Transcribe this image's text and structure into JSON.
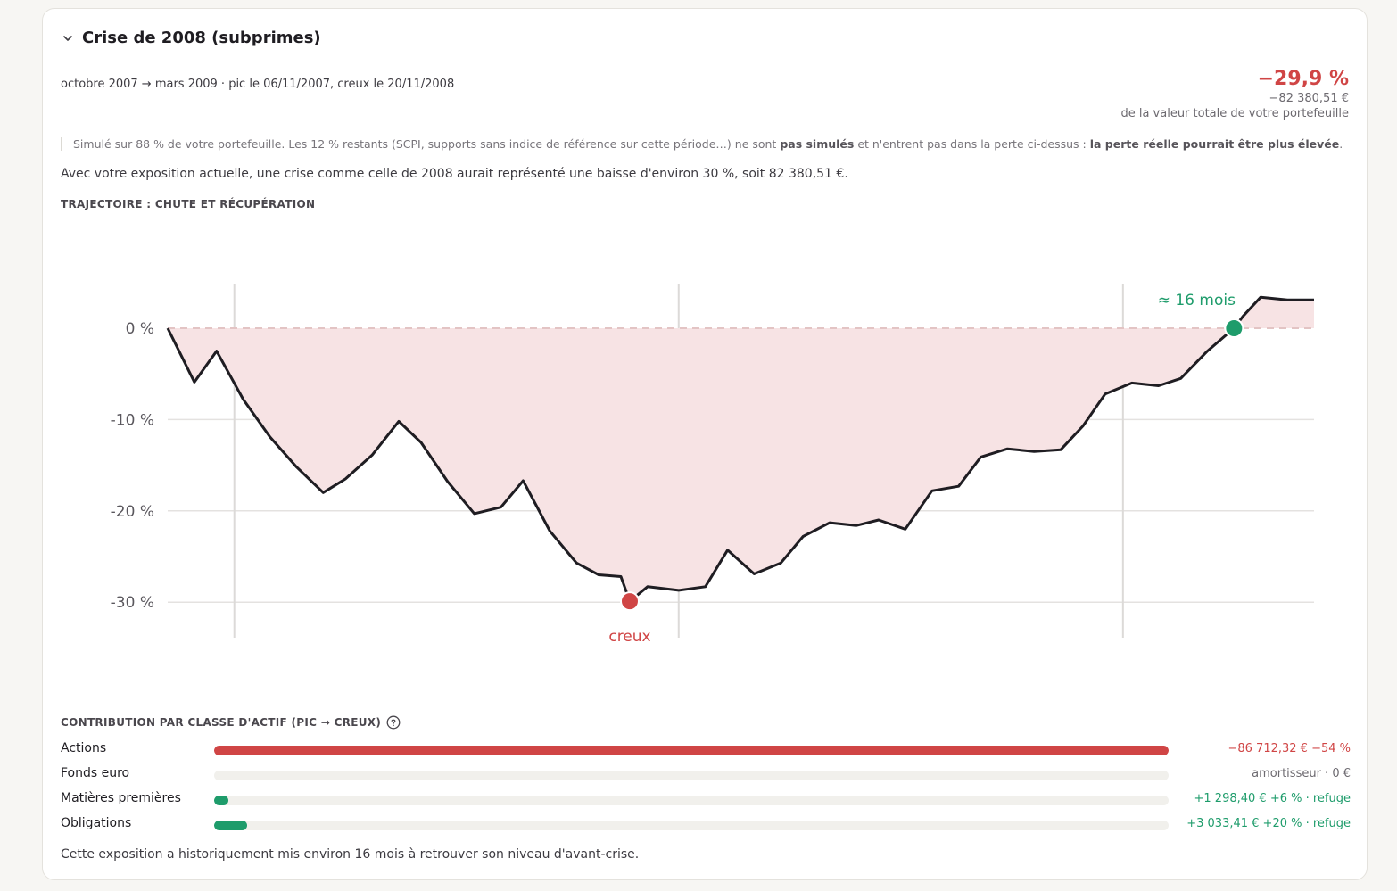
{
  "header": {
    "title": "Crise de 2008 (subprimes)",
    "period": "octobre 2007 → mars 2009 · pic le 06/11/2007, creux le 20/11/2008"
  },
  "summary": {
    "pct": "−29,9 %",
    "amount": "−82 380,51 €",
    "subtitle": "de la valeur totale de votre portefeuille"
  },
  "note": {
    "part1": "Simulé sur 88 % de votre portefeuille. Les 12 % restants (SCPI, supports sans indice de référence sur cette période…) ne sont ",
    "bold1": "pas simulés",
    "part2": " et n'entrent pas dans la perte ci-dessus : ",
    "bold2": "la perte réelle pourrait être plus élevée",
    "part3": "."
  },
  "exposure_text": "Avec votre exposition actuelle, une crise comme celle de 2008 aurait représenté une baisse d'environ 30 %, soit 82 380,51 €.",
  "trajectory_title": "TRAJECTOIRE : CHUTE ET RÉCUPÉRATION",
  "chart_data": {
    "type": "area",
    "title": "TRAJECTOIRE : CHUTE ET RÉCUPÉRATION",
    "xlabel": "",
    "ylabel": "",
    "x_ticks": [
      2008,
      2009,
      2010
    ],
    "x_range": [
      2007.85,
      2010.43
    ],
    "y_ticks": [
      0,
      -10,
      -20,
      -30
    ],
    "y_tick_labels": [
      "0 %",
      "-10 %",
      "-20 %",
      "-30 %"
    ],
    "ylim": [
      -34,
      5
    ],
    "grid": true,
    "series": [
      {
        "x": [
          2007.85,
          2007.91,
          2007.96,
          2008.02,
          2008.08,
          2008.14,
          2008.2,
          2008.25,
          2008.31,
          2008.37,
          2008.42,
          2008.48,
          2008.54,
          2008.6,
          2008.65,
          2008.71,
          2008.77,
          2008.82,
          2008.87,
          2008.89,
          2008.93,
          2009.0,
          2009.06,
          2009.11,
          2009.17,
          2009.23,
          2009.28,
          2009.34,
          2009.4,
          2009.45,
          2009.51,
          2009.57,
          2009.63,
          2009.68,
          2009.74,
          2009.8,
          2009.86,
          2009.91,
          2009.96,
          2010.02,
          2010.08,
          2010.13,
          2010.19,
          2010.25,
          2010.27,
          2010.31,
          2010.37,
          2010.43
        ],
        "values": [
          0,
          -5.9,
          -2.5,
          -7.8,
          -11.9,
          -15.2,
          -18.0,
          -16.5,
          -13.9,
          -10.2,
          -12.5,
          -16.8,
          -20.3,
          -19.6,
          -16.7,
          -22.2,
          -25.7,
          -27.0,
          -27.2,
          -29.9,
          -28.3,
          -28.7,
          -28.3,
          -24.3,
          -26.9,
          -25.7,
          -22.8,
          -21.3,
          -21.6,
          -21.0,
          -22.0,
          -17.8,
          -17.3,
          -14.1,
          -13.2,
          -13.5,
          -13.3,
          -10.7,
          -7.2,
          -6.0,
          -6.3,
          -5.5,
          -2.5,
          0,
          1.3,
          3.4,
          3.1,
          3.1
        ]
      }
    ],
    "annotations": [
      {
        "label": "creux",
        "x": 2008.89,
        "y": -29.9,
        "color": "#d04545"
      },
      {
        "label": "≈ 16 mois",
        "x": 2010.25,
        "y": 0,
        "color": "#1e9c6b"
      }
    ],
    "colors": {
      "line": "#1f1d22",
      "fill": "#f7e3e4",
      "zero_line": "#e3c4c4",
      "grid": "#e4e2e0"
    }
  },
  "contribution": {
    "title": "CONTRIBUTION PAR CLASSE D'ACTIF (PIC → CREUX)",
    "rows": [
      {
        "label": "Actions",
        "value": "−86 712,32 €  −54 %",
        "fraction": 1.0,
        "color": "#d04545",
        "tone": "neg"
      },
      {
        "label": "Fonds euro",
        "value": "amortisseur · 0 €",
        "fraction": 0,
        "color": "#1e9c6b",
        "tone": "muted"
      },
      {
        "label": "Matières premières",
        "value": "+1 298,40 €  +6 % · refuge",
        "fraction": 0.015,
        "color": "#1e9c6b",
        "tone": "pos"
      },
      {
        "label": "Obligations",
        "value": "+3 033,41 €  +20 % · refuge",
        "fraction": 0.035,
        "color": "#1e9c6b",
        "tone": "pos"
      }
    ]
  },
  "footer_text": "Cette exposition a historiquement mis environ 16 mois à retrouver son niveau d'avant-crise."
}
